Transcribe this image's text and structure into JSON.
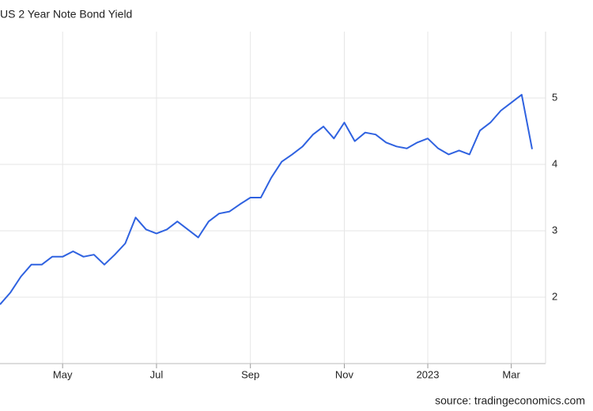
{
  "chart_data": {
    "type": "line",
    "title": "US 2 Year Note Bond Yield",
    "source": "source: tradingeconomics.com",
    "categories": [
      null,
      null,
      null,
      null,
      null,
      null,
      "May",
      null,
      null,
      null,
      null,
      null,
      null,
      null,
      null,
      "Jul",
      null,
      null,
      null,
      null,
      null,
      null,
      null,
      null,
      "Sep",
      null,
      null,
      null,
      null,
      null,
      null,
      null,
      null,
      "Nov",
      null,
      null,
      null,
      null,
      null,
      null,
      null,
      "2023",
      null,
      null,
      null,
      null,
      null,
      null,
      null,
      "Mar",
      null,
      null
    ],
    "series": [
      {
        "name": "US 2 Year Note Bond Yield",
        "color": "#2f62e0",
        "values": [
          1.89,
          2.07,
          2.31,
          2.49,
          2.49,
          2.61,
          2.61,
          2.69,
          2.61,
          2.64,
          2.49,
          2.64,
          2.81,
          3.2,
          3.02,
          2.96,
          3.02,
          3.14,
          3.02,
          2.9,
          3.14,
          3.26,
          3.29,
          3.4,
          3.5,
          3.5,
          3.8,
          4.04,
          4.15,
          4.27,
          4.45,
          4.57,
          4.39,
          4.63,
          4.35,
          4.48,
          4.45,
          4.33,
          4.27,
          4.24,
          4.33,
          4.39,
          4.24,
          4.15,
          4.21,
          4.15,
          4.51,
          4.63,
          4.81,
          4.93,
          5.05,
          4.23
        ]
      }
    ],
    "ylim": [
      1,
      6
    ],
    "yticks": [
      2,
      3,
      4,
      5
    ],
    "grid": true
  }
}
